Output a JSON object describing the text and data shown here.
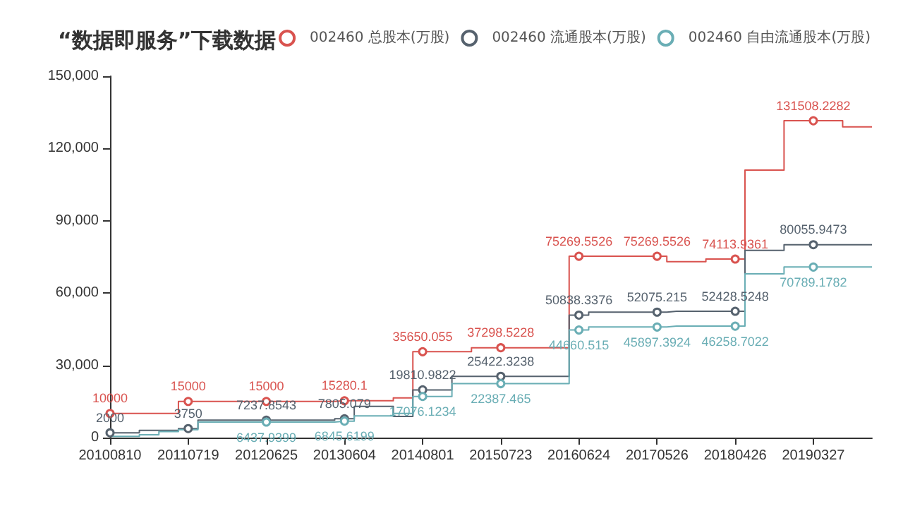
{
  "chart_data": {
    "type": "step",
    "title": "“数据即服务”下载数据",
    "legend": "top right",
    "grid": false,
    "categories": [
      "20100810",
      null,
      null,
      null,
      "20110719",
      null,
      null,
      null,
      "20120625",
      null,
      null,
      null,
      "20130604",
      null,
      null,
      null,
      "20140801",
      null,
      null,
      null,
      "20150723",
      null,
      null,
      null,
      "20160624",
      null,
      null,
      null,
      "20170526",
      null,
      null,
      null,
      "20180426",
      null,
      null,
      null,
      "20190327",
      null,
      null,
      null
    ],
    "ylim": [
      0,
      150000
    ],
    "yticks": [
      {
        "value": 0,
        "label": "0"
      },
      {
        "value": 30000,
        "label": "30,000"
      },
      {
        "value": 60000,
        "label": "60,000"
      },
      {
        "value": 90000,
        "label": "90,000"
      },
      {
        "value": 120000,
        "label": "120,000"
      },
      {
        "value": 150000,
        "label": "150,000"
      }
    ],
    "series": [
      {
        "name": "002460 总股本(万股)",
        "color": "#d9534f",
        "values": [
          10000,
          10000,
          10000,
          10000,
          15000,
          15000,
          15000,
          15000,
          15000,
          15000,
          15000,
          15000,
          15280.1,
          15280.1,
          15280.1,
          16500,
          35650.055,
          35650.055,
          35650.055,
          37298.5228,
          37298.5228,
          37298.5228,
          37298.5228,
          37298.5228,
          75269.5526,
          75269.5526,
          75269.5526,
          75269.5526,
          75269.5526,
          73000,
          73000,
          74113.9361,
          74113.9361,
          111000,
          111000,
          131508.2282,
          131508.2282,
          131508.2282,
          129000,
          129000
        ],
        "value_labels": [
          "10000",
          null,
          null,
          null,
          "15000",
          null,
          null,
          null,
          "15000",
          null,
          null,
          null,
          "15280.1",
          null,
          null,
          null,
          "35650.055",
          null,
          null,
          null,
          "37298.5228",
          null,
          null,
          null,
          "75269.5526",
          null,
          null,
          null,
          "75269.5526",
          null,
          null,
          null,
          "74113.9361",
          null,
          null,
          null,
          "131508.2282",
          null,
          null,
          null
        ]
      },
      {
        "name": "002460 流通股本(万股)",
        "color": "#56626e",
        "values": [
          2000,
          2000,
          3000,
          3000,
          3750,
          7237.8543,
          7237.8543,
          7237.8543,
          7237.8543,
          7237.8543,
          7237.8543,
          7237.8543,
          7805.079,
          13000,
          13000,
          8800,
          19810.9822,
          19810.9822,
          25422.3238,
          25422.3238,
          25422.3238,
          25422.3238,
          25422.3238,
          25422.3238,
          50838.3376,
          52075.215,
          52075.215,
          52075.215,
          52075.215,
          52428.5248,
          52428.5248,
          52428.5248,
          52428.5248,
          77700,
          77700,
          80055.9473,
          80055.9473,
          80055.9473,
          80055.9473,
          80055.9473
        ],
        "value_labels": [
          "2000",
          null,
          null,
          null,
          "3750",
          null,
          null,
          null,
          "7237.8543",
          null,
          null,
          null,
          "7805.079",
          null,
          null,
          null,
          "19810.9822",
          null,
          null,
          null,
          "25422.3238",
          null,
          null,
          null,
          "50838.3376",
          null,
          null,
          null,
          "52075.215",
          null,
          null,
          null,
          "52428.5248",
          null,
          null,
          null,
          "80055.9473",
          null,
          null,
          null
        ]
      },
      {
        "name": "002460 自由流通股本(万股)",
        "color": "#6aaeb5",
        "values": [
          500,
          500,
          1200,
          2500,
          3300,
          6437.9399,
          6437.9399,
          6437.9399,
          6437.9399,
          6437.9399,
          6437.9399,
          6437.9399,
          6845.6199,
          9000,
          9000,
          10000,
          17076.1234,
          17076.1234,
          22387.465,
          22387.465,
          22387.465,
          22387.465,
          22387.465,
          22387.465,
          44660.515,
          45897.3924,
          45897.3924,
          45897.3924,
          45897.3924,
          46258.7022,
          46258.7022,
          46258.7022,
          46258.7022,
          68000,
          68000,
          70789.1782,
          70789.1782,
          70789.1782,
          70789.1782,
          70789.1782
        ],
        "value_labels": [
          null,
          null,
          null,
          null,
          null,
          null,
          null,
          null,
          "6437.9399",
          null,
          null,
          null,
          "6845.6199",
          null,
          null,
          null,
          "17076.1234",
          null,
          null,
          null,
          "22387.465",
          null,
          null,
          null,
          "44660.515",
          null,
          null,
          null,
          "45897.3924",
          null,
          null,
          null,
          "46258.7022",
          null,
          null,
          null,
          "70789.1782",
          null,
          null,
          null
        ]
      }
    ]
  }
}
